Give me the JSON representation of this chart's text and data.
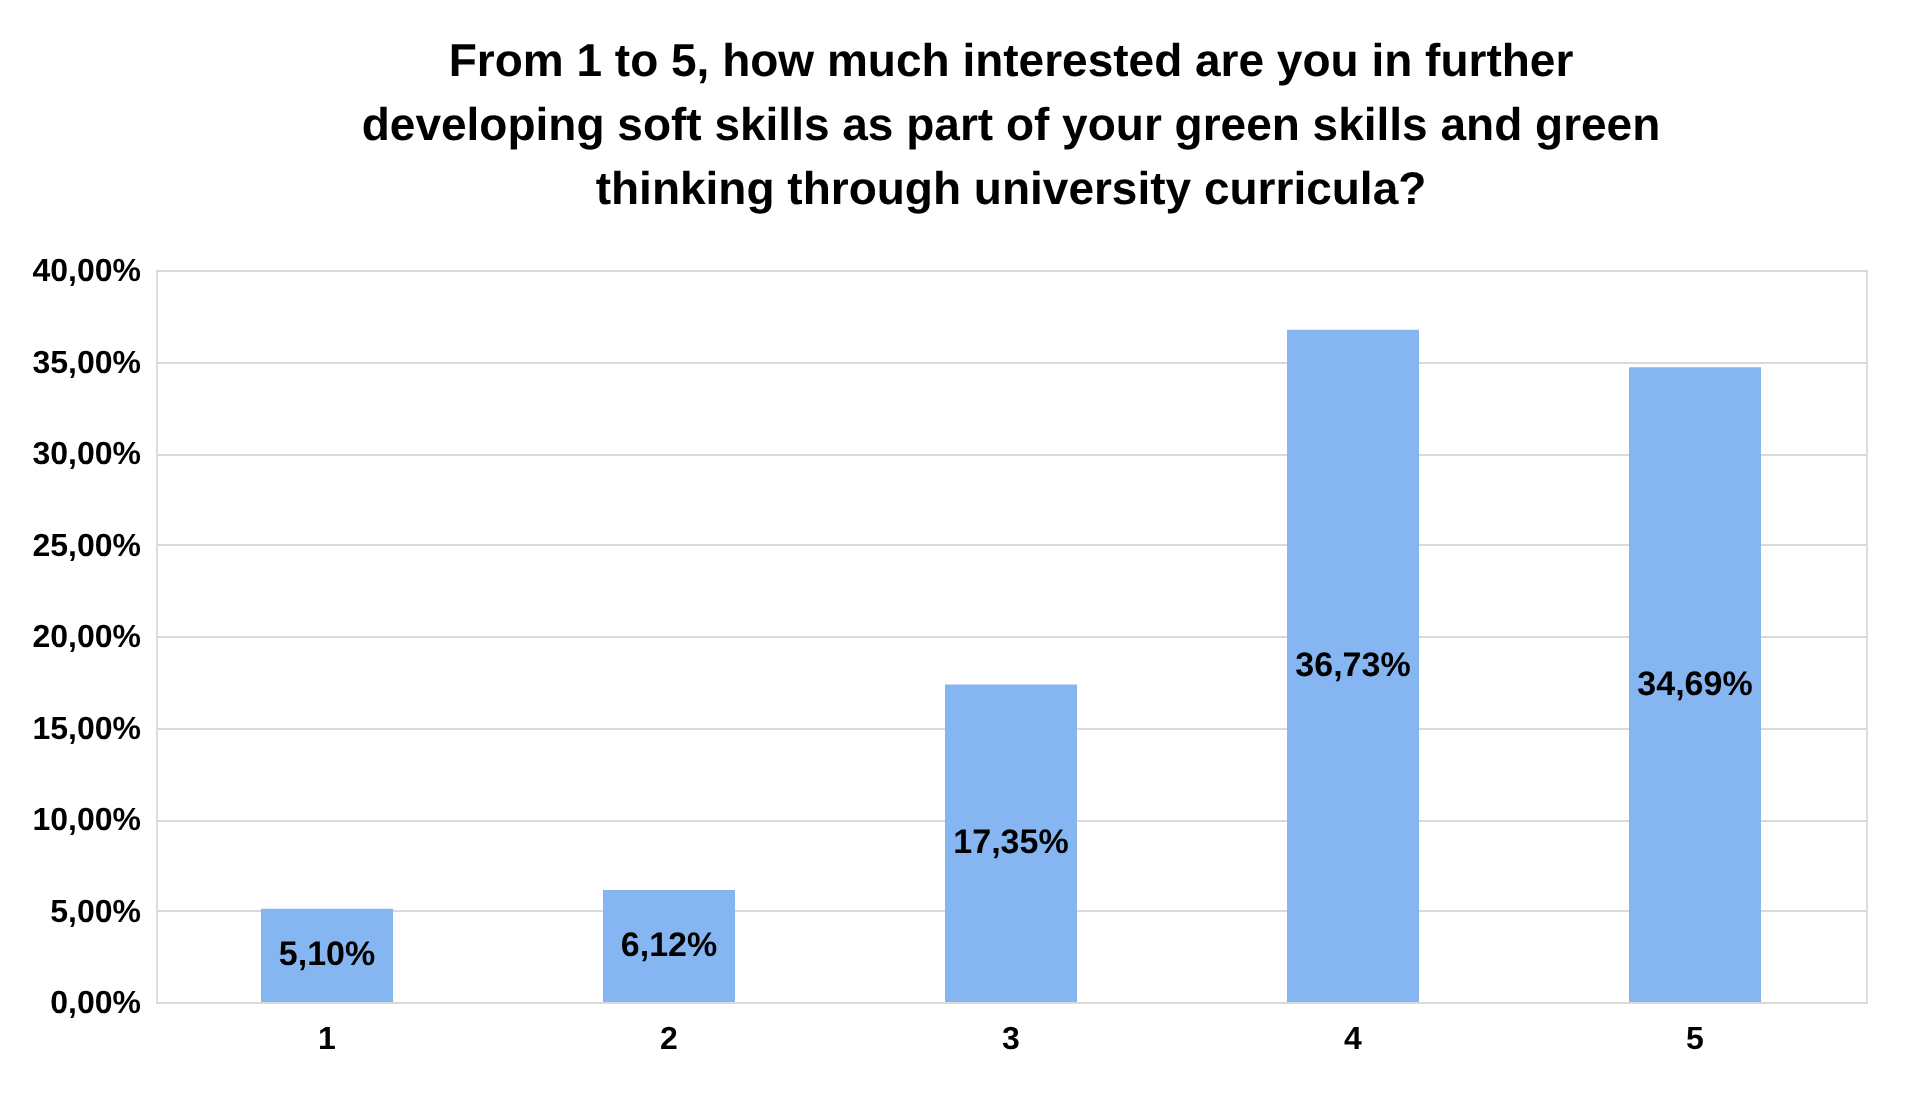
{
  "chart_data": {
    "type": "bar",
    "title": "From 1 to 5, how much interested are you in further\ndeveloping soft skills as part of your green skills and green\nthinking through university curricula?",
    "categories": [
      "1",
      "2",
      "3",
      "4",
      "5"
    ],
    "values": [
      5.1,
      6.12,
      17.35,
      36.73,
      34.69
    ],
    "value_labels": [
      "5,10%",
      "6,12%",
      "17,35%",
      "36,73%",
      "34,69%"
    ],
    "color": "#85b6f1",
    "ylim": [
      0,
      40
    ],
    "yticks": [
      {
        "value": 0,
        "label": "0,00%"
      },
      {
        "value": 5,
        "label": "5,00%"
      },
      {
        "value": 10,
        "label": "10,00%"
      },
      {
        "value": 15,
        "label": "15,00%"
      },
      {
        "value": 20,
        "label": "20,00%"
      },
      {
        "value": 25,
        "label": "25,00%"
      },
      {
        "value": 30,
        "label": "30,00%"
      },
      {
        "value": 35,
        "label": "35,00%"
      },
      {
        "value": 40,
        "label": "40,00%"
      }
    ],
    "grid": "y"
  }
}
